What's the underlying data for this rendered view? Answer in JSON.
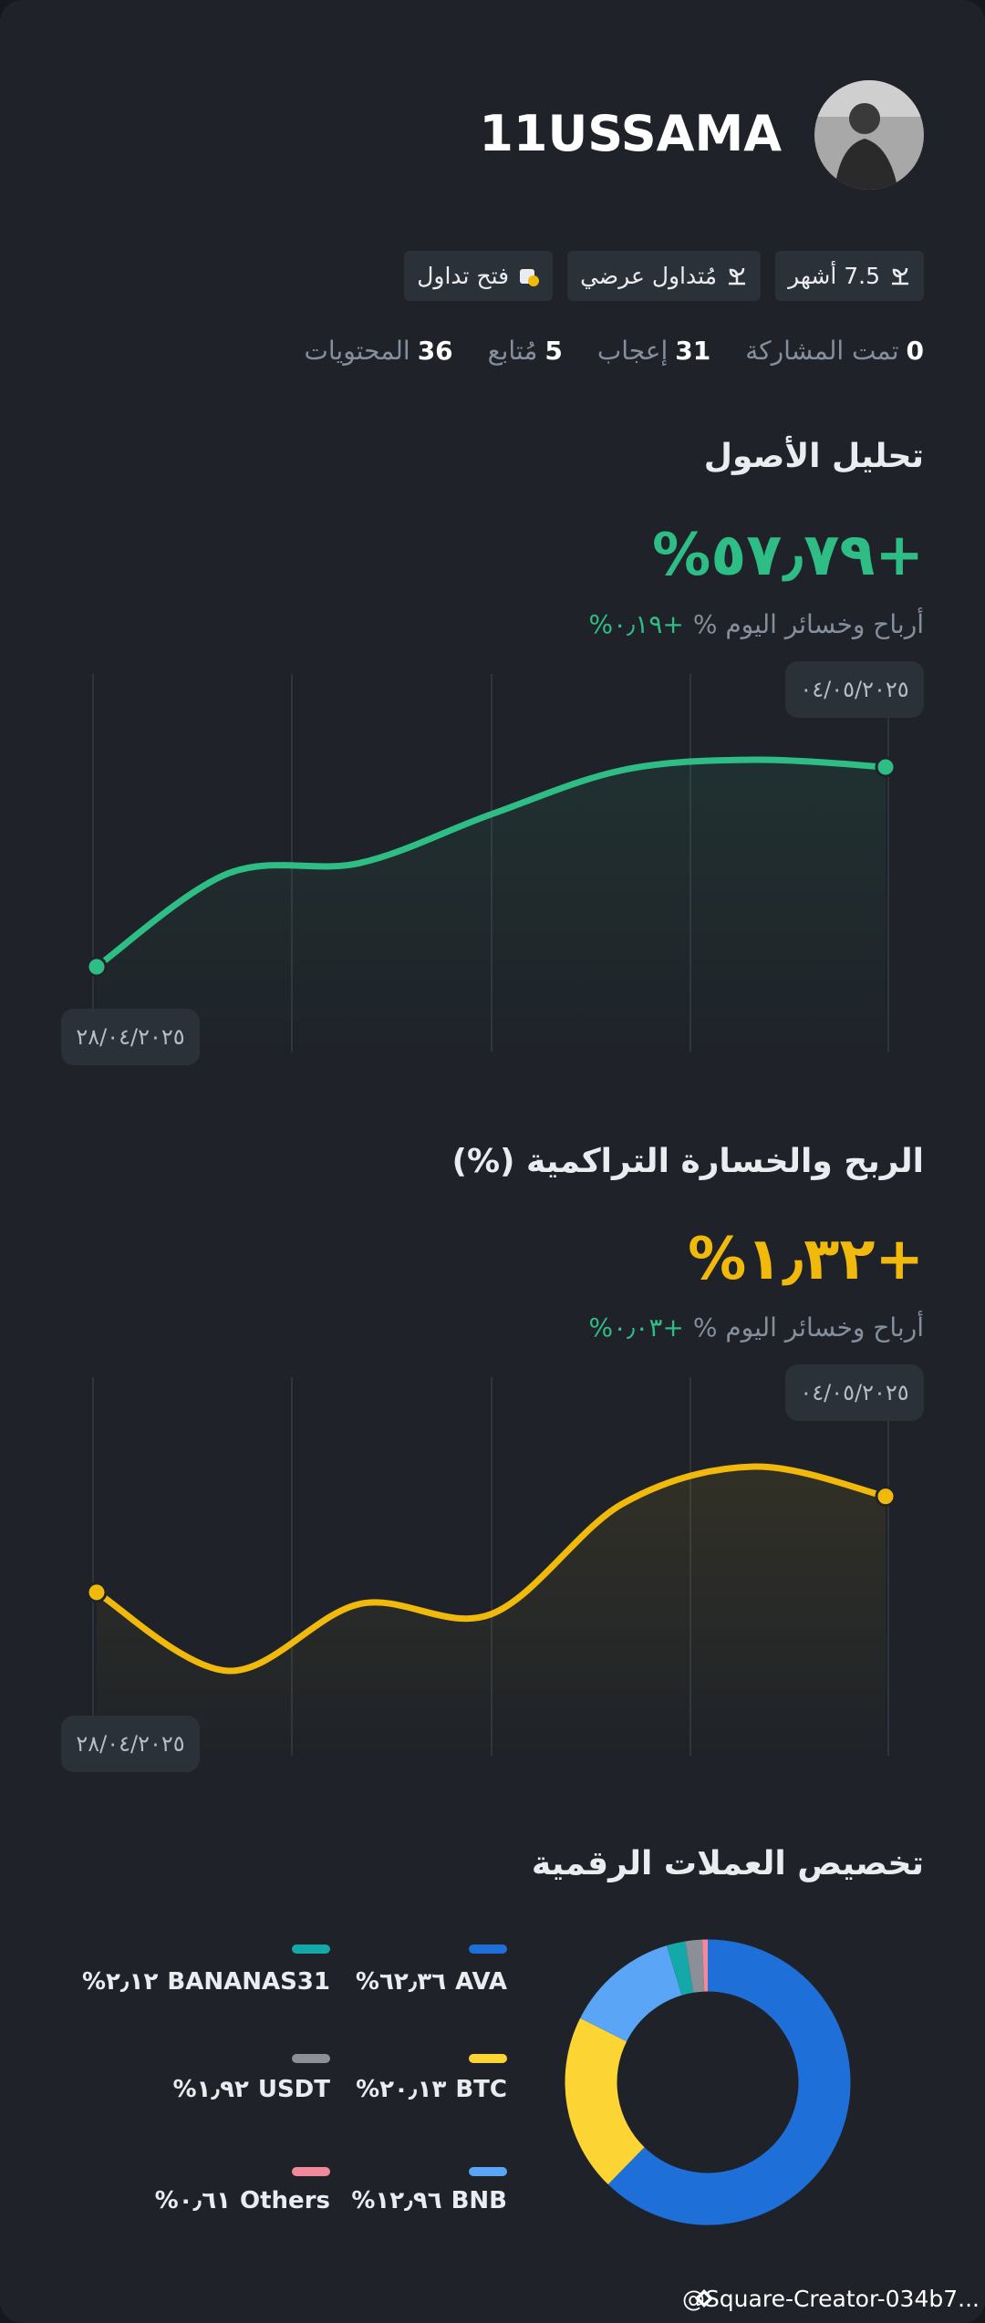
{
  "profile": {
    "name": "11USSAMA",
    "tags": [
      "7.5 أشهر",
      "مُتداول عرضي",
      "فتح تداول"
    ],
    "stats": [
      {
        "value": 0,
        "label": "تمت المشاركة"
      },
      {
        "value": 31,
        "label": "إعجاب"
      },
      {
        "value": 5,
        "label": "مُتابع"
      },
      {
        "value": 36,
        "label": "المحتويات"
      }
    ]
  },
  "chart_data": [
    {
      "type": "line",
      "title": "تحليل الأصول",
      "headline": "+٥٧٫٧٩%",
      "subtitle": "أرباح وخسائر اليوم %",
      "subtitle_value": "+٠٫١٩%",
      "categories": [
        "٢٨/٠٤/٢٠٢٥",
        null,
        null,
        null,
        null,
        null,
        "٠٤/٠٥/٢٠٢٥"
      ],
      "values": [
        0,
        27.0,
        30.0,
        44.1,
        56.9,
        59.9,
        57.79
      ],
      "color": "#2ebd85"
    },
    {
      "type": "line",
      "title": "الربح والخسارة التراكمية (%)",
      "headline": "+١٫٣٢%",
      "subtitle": "أرباح وخسائر اليوم %",
      "subtitle_value": "+٠٫٠٣%",
      "categories": [
        "٢٨/٠٤/٢٠٢٥",
        null,
        null,
        null,
        null,
        null,
        "٠٤/٠٥/٢٠٢٥"
      ],
      "values": [
        0,
        -1.08,
        -0.16,
        -0.3,
        1.22,
        1.73,
        1.32
      ],
      "color": "#f0b90b"
    },
    {
      "type": "pie",
      "title": "تخصيص العملات الرقمية",
      "categories": [
        "AVA",
        "BTC",
        "BNB",
        "BANANAS31",
        "USDT",
        "Others"
      ],
      "values": [
        62.36,
        20.13,
        12.96,
        2.12,
        1.92,
        0.61
      ],
      "value_labels": [
        "٦٢٫٣٦%",
        "٢٠٫١٣%",
        "١٢٫٩٦%",
        "٢٫١٢%",
        "١٫٩٢%",
        "٠٫٦١%"
      ],
      "colors": [
        "#1f6fd8",
        "#fcd535",
        "#5aa5f5",
        "#14a8a8",
        "#8a8f98",
        "#f08a9a"
      ]
    }
  ],
  "watermark": "@Square-Creator-034b7..."
}
